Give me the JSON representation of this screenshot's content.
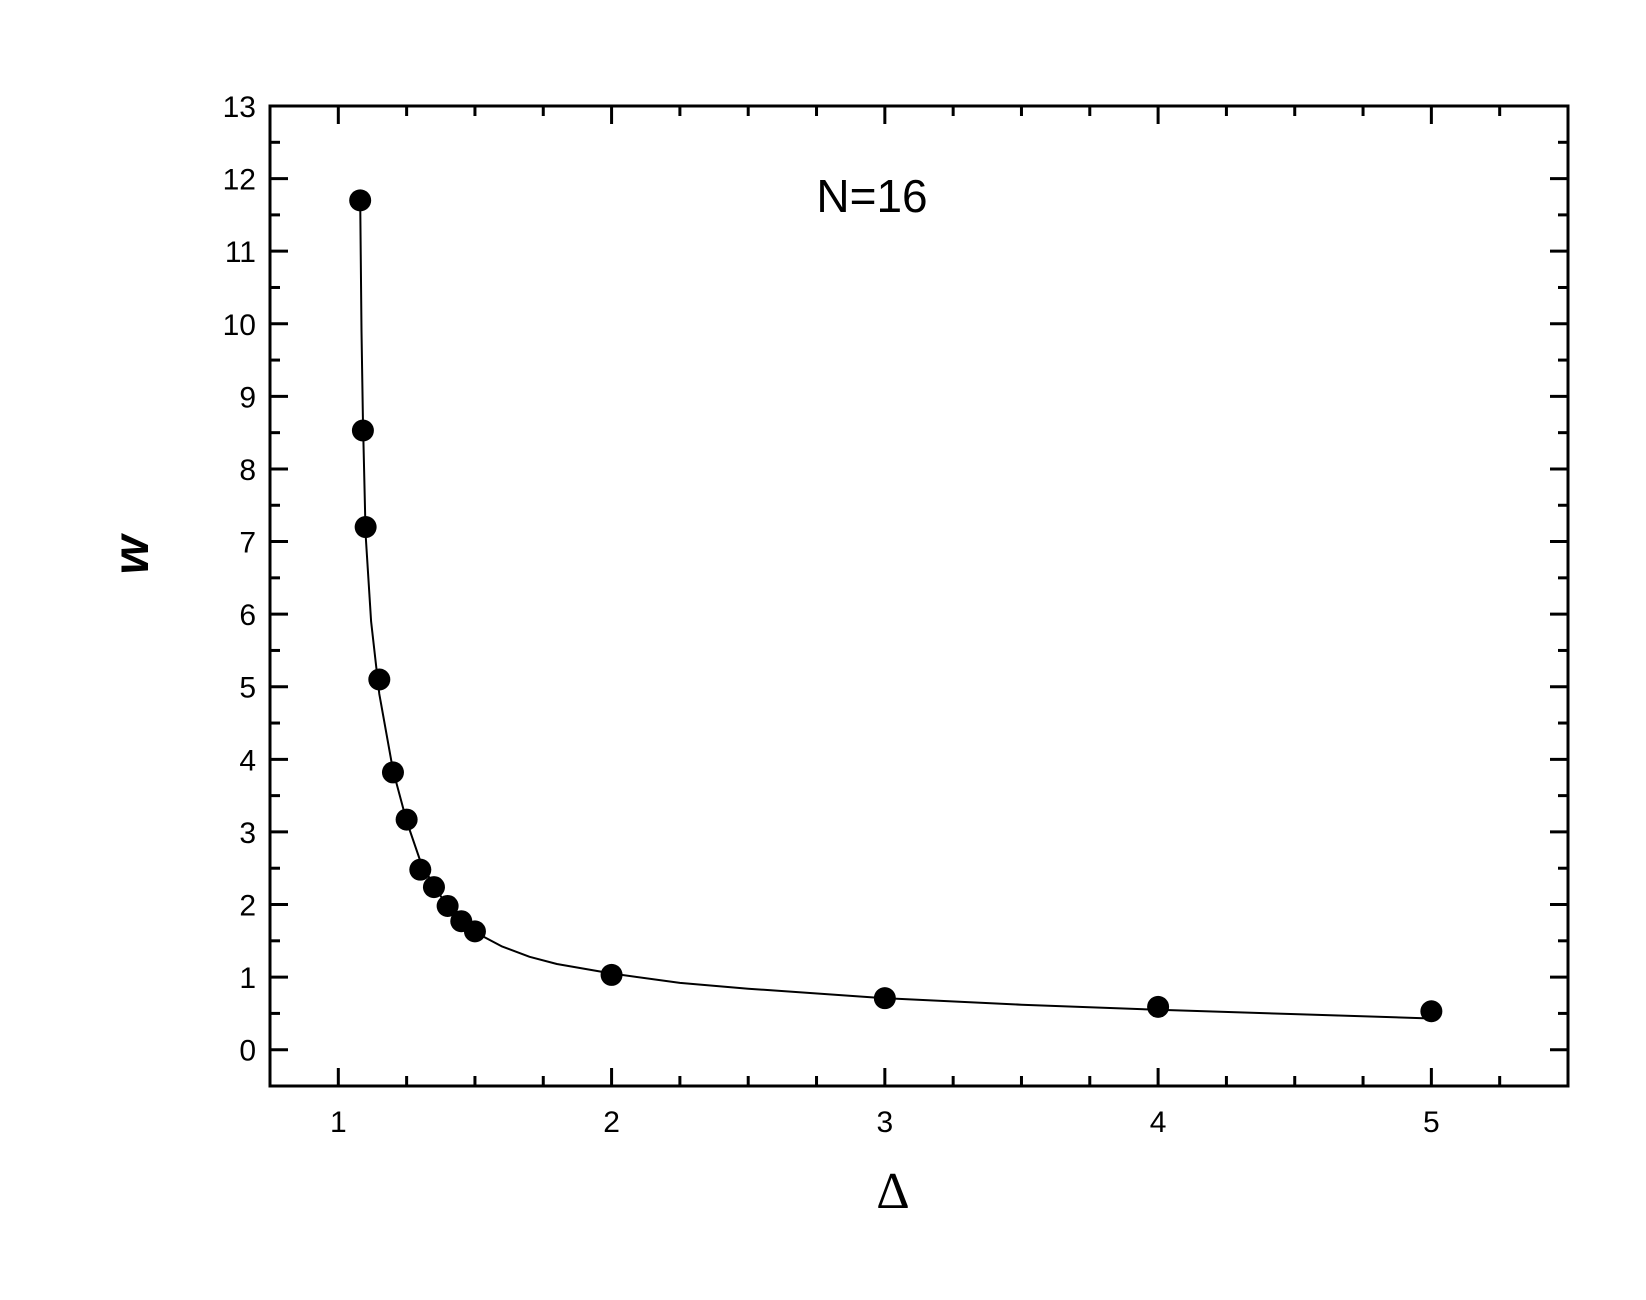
{
  "chart_data": {
    "type": "scatter",
    "title": "",
    "annotation": "N=16",
    "xlabel": "Δ",
    "ylabel": "w",
    "xlim": [
      0.75,
      5.5
    ],
    "ylim": [
      -0.5,
      13
    ],
    "x_major_ticks": [
      1,
      2,
      3,
      4,
      5
    ],
    "x_minor_ticks": [
      1.25,
      1.5,
      1.75,
      2.25,
      2.5,
      2.75,
      3.25,
      3.5,
      3.75,
      4.25,
      4.5,
      4.75,
      5.25
    ],
    "y_major_ticks": [
      0,
      1,
      2,
      3,
      4,
      5,
      6,
      7,
      8,
      9,
      10,
      11,
      12,
      13
    ],
    "grid": false,
    "legend": "none",
    "colors": {
      "marker": "#000000",
      "line": "#000000",
      "frame": "#000000"
    },
    "series": [
      {
        "kind": "points",
        "x": [
          1.08,
          1.09,
          1.1,
          1.15,
          1.2,
          1.25,
          1.3,
          1.35,
          1.4,
          1.45,
          1.5,
          2,
          3,
          4,
          5
        ],
        "y": [
          11.7,
          8.53,
          7.2,
          5.1,
          3.82,
          3.17,
          2.48,
          2.24,
          1.98,
          1.77,
          1.63,
          1.03,
          0.71,
          0.59,
          0.53
        ]
      },
      {
        "kind": "fit-curve",
        "x": [
          1.08,
          1.085,
          1.09,
          1.1,
          1.12,
          1.15,
          1.2,
          1.25,
          1.3,
          1.35,
          1.4,
          1.45,
          1.5,
          1.6,
          1.7,
          1.8,
          2.0,
          2.25,
          2.5,
          3.0,
          3.5,
          4.0,
          4.5,
          5.0
        ],
        "y": [
          11.7,
          9.9,
          8.7,
          7.1,
          5.9,
          4.9,
          3.85,
          3.15,
          2.6,
          2.25,
          1.98,
          1.78,
          1.62,
          1.42,
          1.28,
          1.18,
          1.05,
          0.92,
          0.84,
          0.71,
          0.62,
          0.55,
          0.49,
          0.43
        ]
      }
    ]
  }
}
